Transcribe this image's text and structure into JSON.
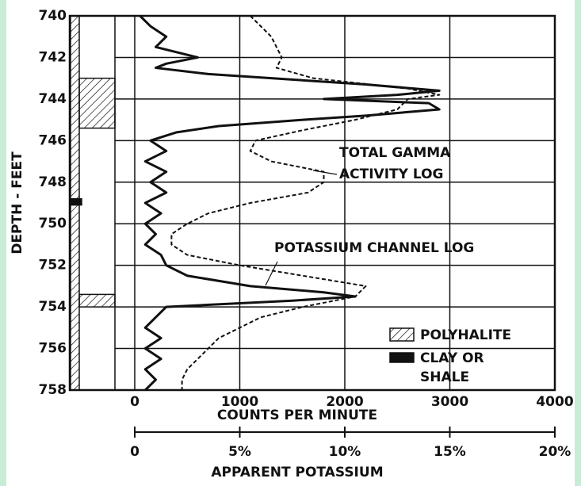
{
  "chart_data": {
    "type": "line",
    "ylabel": "DEPTH - FEET",
    "xlabel": "COUNTS PER MINUTE",
    "x2label": "APPARENT POTASSIUM",
    "ylim": [
      740,
      758
    ],
    "yticks": [
      740,
      742,
      744,
      746,
      748,
      750,
      752,
      754,
      756,
      758
    ],
    "y_inverted": true,
    "xlim": [
      0,
      4000
    ],
    "xticks": [
      0,
      1000,
      2000,
      3000,
      4000
    ],
    "x2lim": [
      0,
      20
    ],
    "x2ticks": [
      0,
      {
        "value": 5,
        "label": "5%"
      },
      {
        "value": 10,
        "label": "10%"
      },
      {
        "value": 15,
        "label": "15%"
      },
      {
        "value": 20,
        "label": "20%"
      }
    ],
    "grid": true,
    "annotations": [
      "TOTAL GAMMA ACTIVITY LOG",
      "POTASSIUM CHANNEL LOG"
    ],
    "series": [
      {
        "name": "POTASSIUM CHANNEL LOG",
        "color": "#111111",
        "dashed": false,
        "depth": [
          740,
          740.5,
          741,
          741.5,
          742,
          742.3,
          742.5,
          742.8,
          743,
          743.3,
          743.6,
          743.8,
          744,
          744.2,
          744.5,
          744.8,
          745,
          745.3,
          745.6,
          746,
          746.5,
          747,
          747.5,
          748,
          748.5,
          749,
          749.5,
          750,
          750.5,
          751,
          751.5,
          752,
          752.5,
          753,
          753.3,
          753.5,
          753.7,
          754,
          754.5,
          755,
          755.5,
          756,
          756.5,
          757,
          757.5,
          758
        ],
        "values": [
          50,
          150,
          300,
          200,
          600,
          300,
          200,
          700,
          1300,
          2200,
          2900,
          2500,
          1800,
          2800,
          2900,
          2200,
          1600,
          800,
          400,
          150,
          300,
          100,
          300,
          150,
          300,
          100,
          250,
          100,
          200,
          100,
          250,
          300,
          500,
          1100,
          1800,
          2100,
          1500,
          300,
          200,
          100,
          250,
          100,
          250,
          100,
          200,
          100
        ]
      },
      {
        "name": "TOTAL GAMMA ACTIVITY LOG",
        "color": "#111111",
        "dashed": true,
        "depth": [
          740,
          740.5,
          741,
          742,
          742.5,
          743,
          743.5,
          743.8,
          744,
          744.5,
          745,
          745.5,
          746,
          746.5,
          747,
          747.5,
          748,
          748.5,
          749,
          749.5,
          750,
          750.5,
          751,
          751.5,
          752,
          752.5,
          753,
          753.5,
          754,
          754.5,
          755,
          755.5,
          756,
          756.5,
          757,
          757.5,
          758
        ],
        "values": [
          1100,
          1200,
          1300,
          1400,
          1350,
          1700,
          2600,
          2900,
          2600,
          2500,
          2100,
          1600,
          1150,
          1100,
          1300,
          1800,
          1800,
          1650,
          1100,
          700,
          500,
          350,
          350,
          500,
          1000,
          1600,
          2200,
          2100,
          1600,
          1200,
          1000,
          800,
          700,
          600,
          500,
          450,
          450
        ]
      }
    ],
    "lithology": [
      {
        "name": "POLYHALITE",
        "intervals": [
          [
            740,
            758
          ],
          [
            743,
            745.4
          ],
          [
            753.4,
            754
          ]
        ]
      },
      {
        "name": "CLAY OR SHALE",
        "intervals": [
          [
            748.8,
            749.1
          ]
        ]
      }
    ]
  }
}
